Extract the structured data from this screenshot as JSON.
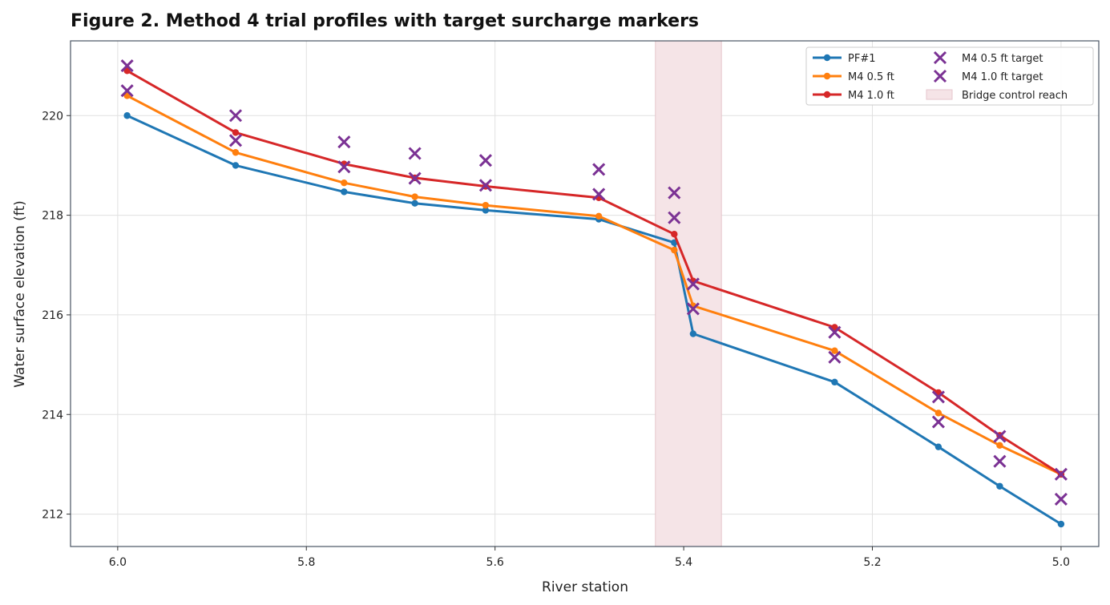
{
  "chart_data": {
    "type": "line",
    "title": "Figure 2. Method 4 trial profiles with target surcharge markers",
    "xlabel": "River station",
    "ylabel": "Water surface elevation (ft)",
    "xlim": [
      6.05,
      4.96
    ],
    "ylim": [
      211.35,
      221.5
    ],
    "x_reversed": true,
    "xticks": [
      6.0,
      5.8,
      5.6,
      5.4,
      5.2,
      5.0
    ],
    "xtick_labels": [
      "6.0",
      "5.8",
      "5.6",
      "5.4",
      "5.2",
      "5.0"
    ],
    "yticks": [
      212,
      214,
      216,
      218,
      220
    ],
    "ytick_labels": [
      "212",
      "214",
      "216",
      "218",
      "220"
    ],
    "grid": true,
    "legend_position": "top-right",
    "x": [
      5.99,
      5.875,
      5.76,
      5.685,
      5.61,
      5.49,
      5.41,
      5.39,
      5.24,
      5.13,
      5.065,
      5.0
    ],
    "series": [
      {
        "name": "PF#1",
        "color": "#1f77b4",
        "marker": "circle",
        "values": [
          220.0,
          219.0,
          218.47,
          218.24,
          218.1,
          217.92,
          217.45,
          215.62,
          214.65,
          213.35,
          212.56,
          211.8
        ]
      },
      {
        "name": "M4 0.5 ft",
        "color": "#ff7f0e",
        "marker": "circle",
        "values": [
          220.4,
          219.26,
          218.65,
          218.37,
          218.2,
          217.98,
          217.3,
          216.18,
          215.28,
          214.03,
          213.38,
          212.8
        ]
      },
      {
        "name": "M4 1.0 ft",
        "color": "#d62728",
        "marker": "circle",
        "values": [
          220.9,
          219.66,
          219.03,
          218.75,
          218.58,
          218.35,
          217.62,
          216.68,
          215.75,
          214.44,
          213.58,
          212.8
        ]
      }
    ],
    "target_series": [
      {
        "name": "M4 0.5 ft target",
        "color": "#7b3294",
        "marker": "x",
        "values": [
          220.5,
          219.5,
          218.97,
          218.74,
          218.6,
          218.42,
          217.95,
          216.12,
          215.15,
          213.85,
          213.06,
          212.3
        ]
      },
      {
        "name": "M4 1.0 ft target",
        "color": "#7b3294",
        "marker": "x",
        "values": [
          221.0,
          220.0,
          219.47,
          219.24,
          219.1,
          218.92,
          218.45,
          216.62,
          215.65,
          214.35,
          213.56,
          212.8
        ]
      }
    ],
    "shaded_region": {
      "name": "Bridge control reach",
      "x_range": [
        5.43,
        5.36
      ],
      "color": "#f5e4e7"
    },
    "legend": {
      "col1": [
        "PF#1",
        "M4 0.5 ft",
        "M4 1.0 ft"
      ],
      "col2": [
        "M4 0.5 ft target",
        "M4 1.0 ft target",
        "Bridge control reach"
      ]
    }
  }
}
